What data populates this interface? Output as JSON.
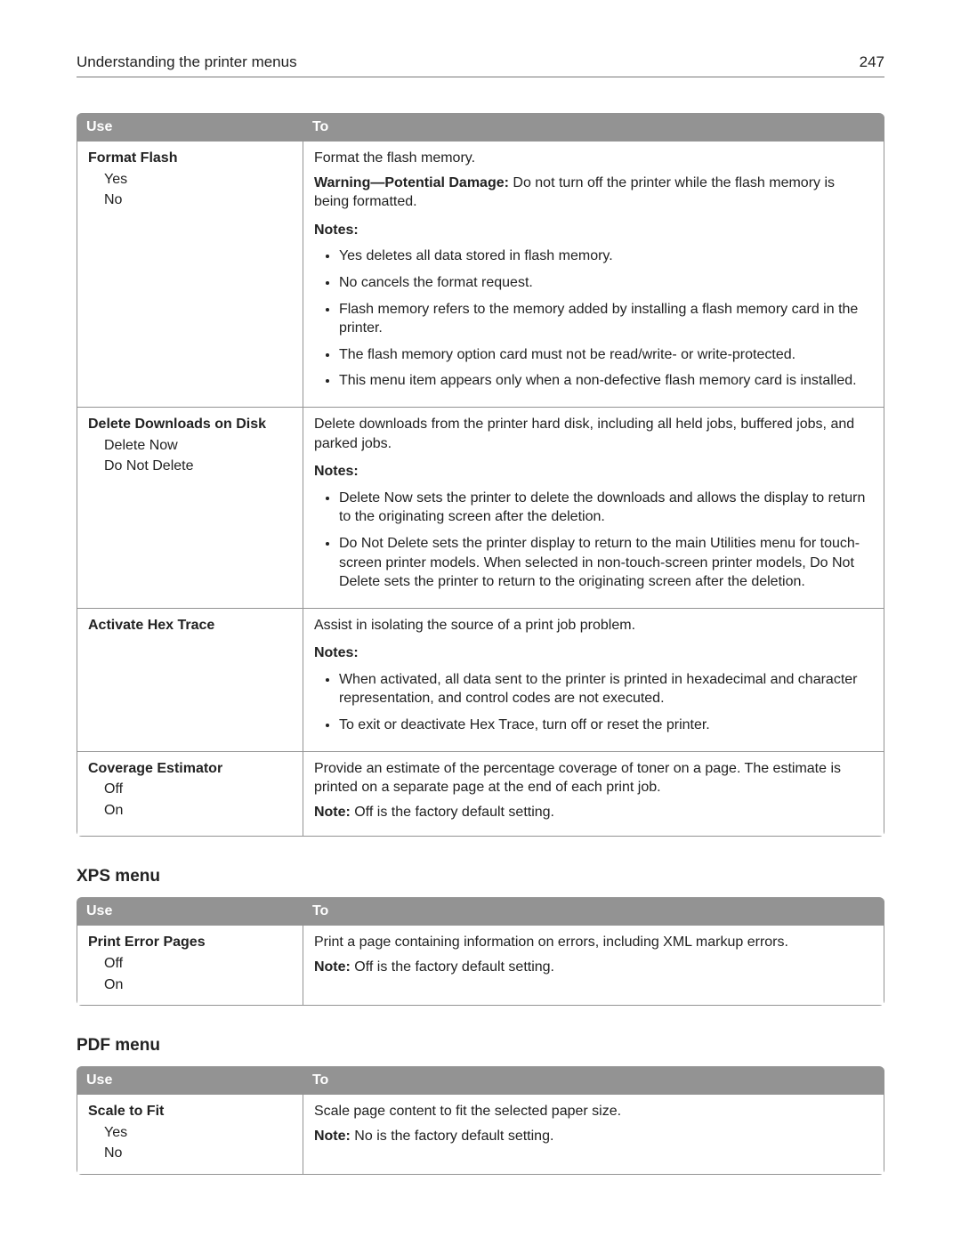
{
  "header": {
    "title": "Understanding the printer menus",
    "page_number": "247"
  },
  "table1": {
    "col_use": "Use",
    "col_to": "To",
    "rows": {
      "r1": {
        "label": "Format Flash",
        "opt1": "Yes",
        "opt2": "No",
        "desc1": "Format the flash memory.",
        "warn_label": "Warning—Potential Damage:",
        "warn_text": " Do not turn off the printer while the flash memory is being formatted.",
        "notes_label": "Notes:",
        "n1": "Yes deletes all data stored in flash memory.",
        "n2": "No cancels the format request.",
        "n3": "Flash memory refers to the memory added by installing a flash memory card in the printer.",
        "n4": "The flash memory option card must not be read/write- or write-protected.",
        "n5": "This menu item appears only when a non-defective flash memory card is installed."
      },
      "r2": {
        "label": "Delete Downloads on Disk",
        "opt1": "Delete Now",
        "opt2": "Do Not Delete",
        "desc1": "Delete downloads from the printer hard disk, including all held jobs, buffered jobs, and parked jobs.",
        "notes_label": "Notes:",
        "n1": "Delete Now sets the printer to delete the downloads and allows the display to return to the originating screen after the deletion.",
        "n2": "Do Not Delete sets the printer display to return to the main Utilities menu for touch-screen printer models. When selected in non-touch-screen printer models, Do Not Delete sets the printer to return to the originating screen after the deletion."
      },
      "r3": {
        "label": "Activate Hex Trace",
        "desc1": "Assist in isolating the source of a print job problem.",
        "notes_label": "Notes:",
        "n1": "When activated, all data sent to the printer is printed in hexadecimal and character representation, and control codes are not executed.",
        "n2": "To exit or deactivate Hex Trace, turn off or reset the printer."
      },
      "r4": {
        "label": "Coverage Estimator",
        "opt1": "Off",
        "opt2": "On",
        "desc1": "Provide an estimate of the percentage coverage of toner on a page. The estimate is printed on a separate page at the end of each print job.",
        "note_label": "Note:",
        "note_text": " Off is the factory default setting."
      }
    }
  },
  "xps": {
    "title": "XPS menu",
    "col_use": "Use",
    "col_to": "To",
    "row": {
      "label": "Print Error Pages",
      "opt1": "Off",
      "opt2": "On",
      "desc1": "Print a page containing information on errors, including XML markup errors.",
      "note_label": "Note:",
      "note_text": " Off is the factory default setting."
    }
  },
  "pdf": {
    "title": "PDF menu",
    "col_use": "Use",
    "col_to": "To",
    "row": {
      "label": "Scale to Fit",
      "opt1": "Yes",
      "opt2": "No",
      "desc1": "Scale page content to fit the selected paper size.",
      "note_label": "Note:",
      "note_text": " No is the factory default setting."
    }
  },
  "colors": {
    "header_bg": "#939393",
    "header_fg": "#ffffff",
    "border": "#939393",
    "text": "#222222",
    "rule": "#787878",
    "page_bg": "#ffffff"
  },
  "typography": {
    "body_font": "Segoe UI / Helvetica Neue / Arial",
    "body_size_pt": 12,
    "section_title_size_pt": 14,
    "section_title_weight": 700
  }
}
